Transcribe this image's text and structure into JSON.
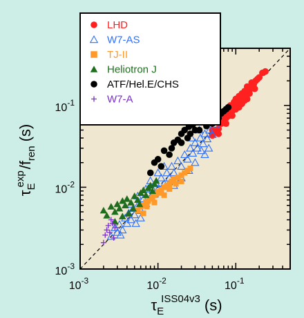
{
  "chart_data": {
    "type": "scatter",
    "title": "",
    "xscale": "log",
    "yscale": "log",
    "xlim": [
      0.001,
      0.5
    ],
    "ylim": [
      0.001,
      0.5
    ],
    "xticks": [
      0.001,
      0.01,
      0.1
    ],
    "yticks": [
      0.001,
      0.01,
      0.1
    ],
    "xtick_labels": [
      {
        "base": "10",
        "exp": "-3"
      },
      {
        "base": "10",
        "exp": "-2"
      },
      {
        "base": "10",
        "exp": "-1"
      }
    ],
    "ytick_labels": [
      {
        "base": "10",
        "exp": "-3"
      },
      {
        "base": "10",
        "exp": "-2"
      },
      {
        "base": "10",
        "exp": "-1"
      }
    ],
    "xlabel": {
      "symbol": "τ",
      "sub": "E",
      "sup": "ISS04v3",
      "unit": "(s)"
    },
    "ylabel": {
      "symbol": "τ",
      "sub": "E",
      "sup": "exp",
      "slash": "/f",
      "sub2": "ren",
      "unit": "(s)"
    },
    "reference_line": {
      "style": "dashed",
      "points": [
        [
          0.001,
          0.001
        ],
        [
          0.5,
          0.5
        ]
      ]
    },
    "legend": {
      "position": "top-left"
    },
    "plot_background": "#efe7cf",
    "page_background": "#cdeee6",
    "series": [
      {
        "name": "LHD",
        "marker": "circle",
        "color": "#ff2020",
        "points": [
          [
            0.05,
            0.043
          ],
          [
            0.055,
            0.048
          ],
          [
            0.06,
            0.052
          ],
          [
            0.065,
            0.06
          ],
          [
            0.07,
            0.063
          ],
          [
            0.075,
            0.07
          ],
          [
            0.08,
            0.074
          ],
          [
            0.085,
            0.082
          ],
          [
            0.09,
            0.085
          ],
          [
            0.095,
            0.092
          ],
          [
            0.1,
            0.1
          ],
          [
            0.105,
            0.108
          ],
          [
            0.11,
            0.11
          ],
          [
            0.115,
            0.118
          ],
          [
            0.12,
            0.125
          ],
          [
            0.13,
            0.132
          ],
          [
            0.14,
            0.145
          ],
          [
            0.15,
            0.155
          ],
          [
            0.16,
            0.17
          ],
          [
            0.17,
            0.18
          ],
          [
            0.18,
            0.2
          ],
          [
            0.2,
            0.22
          ],
          [
            0.22,
            0.25
          ],
          [
            0.24,
            0.26
          ],
          [
            0.07,
            0.08
          ],
          [
            0.08,
            0.09
          ],
          [
            0.09,
            0.1
          ],
          [
            0.1,
            0.12
          ],
          [
            0.12,
            0.14
          ],
          [
            0.14,
            0.17
          ],
          [
            0.16,
            0.19
          ],
          [
            0.06,
            0.045
          ],
          [
            0.075,
            0.06
          ],
          [
            0.09,
            0.075
          ],
          [
            0.1,
            0.09
          ],
          [
            0.12,
            0.105
          ],
          [
            0.13,
            0.115
          ],
          [
            0.15,
            0.14
          ],
          [
            0.05,
            0.05
          ],
          [
            0.065,
            0.07
          ],
          [
            0.085,
            0.1
          ],
          [
            0.11,
            0.13
          ],
          [
            0.13,
            0.15
          ],
          [
            0.11,
            0.095
          ],
          [
            0.095,
            0.11
          ],
          [
            0.14,
            0.12
          ],
          [
            0.175,
            0.16
          ],
          [
            0.19,
            0.21
          ]
        ]
      },
      {
        "name": "W7-AS",
        "marker": "triangle-open",
        "color": "#2a6fff",
        "points": [
          [
            0.0025,
            0.0025
          ],
          [
            0.003,
            0.0028
          ],
          [
            0.0032,
            0.0035
          ],
          [
            0.0035,
            0.003
          ],
          [
            0.0038,
            0.0042
          ],
          [
            0.004,
            0.0036
          ],
          [
            0.0042,
            0.0048
          ],
          [
            0.0045,
            0.004
          ],
          [
            0.0048,
            0.0055
          ],
          [
            0.005,
            0.0046
          ],
          [
            0.0055,
            0.006
          ],
          [
            0.006,
            0.0052
          ],
          [
            0.0065,
            0.0072
          ],
          [
            0.007,
            0.0063
          ],
          [
            0.0075,
            0.0085
          ],
          [
            0.008,
            0.0075
          ],
          [
            0.0085,
            0.0095
          ],
          [
            0.009,
            0.0082
          ],
          [
            0.0095,
            0.011
          ],
          [
            0.01,
            0.0095
          ],
          [
            0.011,
            0.013
          ],
          [
            0.012,
            0.011
          ],
          [
            0.013,
            0.015
          ],
          [
            0.014,
            0.013
          ],
          [
            0.015,
            0.018
          ],
          [
            0.016,
            0.015
          ],
          [
            0.018,
            0.021
          ],
          [
            0.02,
            0.018
          ],
          [
            0.022,
            0.025
          ],
          [
            0.024,
            0.022
          ],
          [
            0.026,
            0.03
          ],
          [
            0.028,
            0.026
          ],
          [
            0.03,
            0.035
          ],
          [
            0.032,
            0.03
          ],
          [
            0.035,
            0.04
          ],
          [
            0.038,
            0.034
          ],
          [
            0.04,
            0.045
          ],
          [
            0.043,
            0.039
          ],
          [
            0.046,
            0.05
          ],
          [
            0.05,
            0.044
          ],
          [
            0.04,
            0.025
          ],
          [
            0.03,
            0.02
          ],
          [
            0.045,
            0.03
          ],
          [
            0.025,
            0.016
          ],
          [
            0.02,
            0.013
          ],
          [
            0.016,
            0.0105
          ],
          [
            0.007,
            0.0095
          ],
          [
            0.008,
            0.012
          ],
          [
            0.01,
            0.015
          ],
          [
            0.012,
            0.018
          ],
          [
            0.0045,
            0.0062
          ],
          [
            0.0055,
            0.0078
          ],
          [
            0.006,
            0.0042
          ],
          [
            0.0052,
            0.0036
          ],
          [
            0.0033,
            0.0026
          ],
          [
            0.0028,
            0.0032
          ],
          [
            0.034,
            0.05
          ],
          [
            0.027,
            0.04
          ],
          [
            0.055,
            0.058
          ],
          [
            0.036,
            0.028
          ]
        ]
      },
      {
        "name": "TJ-II",
        "marker": "square",
        "color": "#ff9a2a",
        "points": [
          [
            0.0055,
            0.0052
          ],
          [
            0.006,
            0.0058
          ],
          [
            0.0065,
            0.006
          ],
          [
            0.007,
            0.0066
          ],
          [
            0.0075,
            0.0068
          ],
          [
            0.008,
            0.0072
          ],
          [
            0.0085,
            0.0075
          ],
          [
            0.009,
            0.008
          ],
          [
            0.0095,
            0.0082
          ],
          [
            0.01,
            0.0088
          ],
          [
            0.011,
            0.0092
          ],
          [
            0.012,
            0.01
          ],
          [
            0.013,
            0.0105
          ],
          [
            0.014,
            0.011
          ],
          [
            0.015,
            0.0118
          ],
          [
            0.016,
            0.0125
          ],
          [
            0.018,
            0.0132
          ],
          [
            0.02,
            0.014
          ],
          [
            0.022,
            0.015
          ],
          [
            0.024,
            0.016
          ],
          [
            0.026,
            0.017
          ],
          [
            0.009,
            0.0065
          ],
          [
            0.0072,
            0.0058
          ],
          [
            0.011,
            0.0085
          ],
          [
            0.014,
            0.0095
          ],
          [
            0.017,
            0.011
          ],
          [
            0.0065,
            0.0048
          ],
          [
            0.012,
            0.008
          ],
          [
            0.02,
            0.0118
          ]
        ]
      },
      {
        "name": "Heliotron J",
        "marker": "triangle",
        "color": "#1e6e1e",
        "points": [
          [
            0.002,
            0.0052
          ],
          [
            0.0022,
            0.0045
          ],
          [
            0.0025,
            0.0058
          ],
          [
            0.0028,
            0.005
          ],
          [
            0.003,
            0.0062
          ],
          [
            0.0032,
            0.0055
          ],
          [
            0.0035,
            0.0068
          ],
          [
            0.0038,
            0.006
          ],
          [
            0.004,
            0.0072
          ],
          [
            0.0045,
            0.0065
          ],
          [
            0.005,
            0.0078
          ],
          [
            0.0055,
            0.007
          ],
          [
            0.006,
            0.0085
          ],
          [
            0.0065,
            0.0092
          ],
          [
            0.007,
            0.008
          ],
          [
            0.0075,
            0.0098
          ],
          [
            0.008,
            0.0105
          ],
          [
            0.0085,
            0.009
          ],
          [
            0.009,
            0.011
          ],
          [
            0.0095,
            0.012
          ],
          [
            0.0042,
            0.0048
          ],
          [
            0.0035,
            0.0044
          ],
          [
            0.0028,
            0.0038
          ],
          [
            0.0048,
            0.0055
          ],
          [
            0.0058,
            0.0062
          ]
        ]
      },
      {
        "name": "ATF/Hel.E/CHS",
        "marker": "circle",
        "color": "#000000",
        "points": [
          [
            0.018,
            0.038
          ],
          [
            0.02,
            0.045
          ],
          [
            0.022,
            0.05
          ],
          [
            0.025,
            0.055
          ],
          [
            0.028,
            0.058
          ],
          [
            0.03,
            0.062
          ],
          [
            0.032,
            0.064
          ],
          [
            0.035,
            0.068
          ],
          [
            0.038,
            0.07
          ],
          [
            0.04,
            0.072
          ],
          [
            0.045,
            0.075
          ],
          [
            0.05,
            0.078
          ],
          [
            0.055,
            0.08
          ],
          [
            0.06,
            0.07
          ],
          [
            0.065,
            0.08
          ],
          [
            0.07,
            0.085
          ],
          [
            0.075,
            0.09
          ],
          [
            0.08,
            0.095
          ],
          [
            0.015,
            0.03
          ],
          [
            0.016,
            0.035
          ],
          [
            0.012,
            0.028
          ],
          [
            0.014,
            0.025
          ],
          [
            0.024,
            0.04
          ],
          [
            0.034,
            0.05
          ],
          [
            0.042,
            0.056
          ],
          [
            0.05,
            0.06
          ],
          [
            0.026,
            0.045
          ],
          [
            0.03,
            0.05
          ],
          [
            0.01,
            0.022
          ],
          [
            0.011,
            0.018
          ],
          [
            0.008,
            0.015
          ],
          [
            0.009,
            0.02
          ],
          [
            0.02,
            0.035
          ],
          [
            0.045,
            0.065
          ],
          [
            0.058,
            0.068
          ]
        ]
      },
      {
        "name": "W7-A",
        "marker": "plus",
        "color": "#7a2ec8",
        "points": [
          [
            0.002,
            0.0021
          ],
          [
            0.0021,
            0.0026
          ],
          [
            0.0022,
            0.003
          ],
          [
            0.0023,
            0.0034
          ],
          [
            0.0024,
            0.0028
          ],
          [
            0.0026,
            0.0036
          ],
          [
            0.0025,
            0.004
          ],
          [
            0.0028,
            0.0032
          ],
          [
            0.0027,
            0.0024
          ]
        ]
      }
    ]
  }
}
